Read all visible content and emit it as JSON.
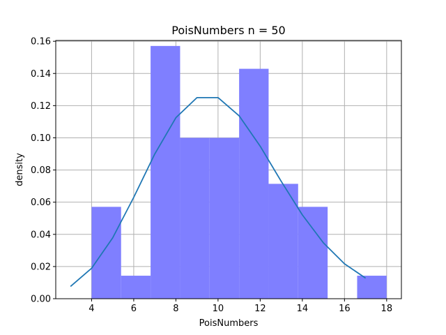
{
  "chart_data": {
    "type": "bar",
    "title": "PoisNumbers n = 50",
    "xlabel": "PoisNumbers",
    "ylabel": "density",
    "xlim": [
      2.3,
      18.7
    ],
    "ylim": [
      0,
      0.1605
    ],
    "xticks": [
      4,
      6,
      8,
      10,
      12,
      14,
      16,
      18
    ],
    "yticks": [
      0.0,
      0.02,
      0.04,
      0.06,
      0.08,
      0.1,
      0.12,
      0.14,
      0.16
    ],
    "xtick_labels": [
      "4",
      "6",
      "8",
      "10",
      "12",
      "14",
      "16",
      "18"
    ],
    "ytick_labels": [
      "0.00",
      "0.02",
      "0.04",
      "0.06",
      "0.08",
      "0.10",
      "0.12",
      "0.14",
      "0.16"
    ],
    "grid": true,
    "histogram": {
      "bin_edges": [
        4.0,
        5.4,
        6.8,
        8.2,
        9.6,
        11.0,
        12.4,
        13.8,
        15.2,
        16.6,
        18.0
      ],
      "density": [
        0.0571,
        0.0143,
        0.1571,
        0.1,
        0.1,
        0.1429,
        0.0714,
        0.0571,
        0.0,
        0.0143
      ],
      "color": "#7f7fff"
    },
    "line": {
      "x": [
        3,
        4,
        5,
        6,
        7,
        8,
        9,
        10,
        11,
        12,
        13,
        14,
        15,
        16,
        17
      ],
      "y": [
        0.0076,
        0.0189,
        0.0378,
        0.063,
        0.09,
        0.1125,
        0.125,
        0.125,
        0.1137,
        0.0948,
        0.0729,
        0.0521,
        0.0347,
        0.0217,
        0.0128
      ],
      "color": "#1f77b4"
    }
  }
}
